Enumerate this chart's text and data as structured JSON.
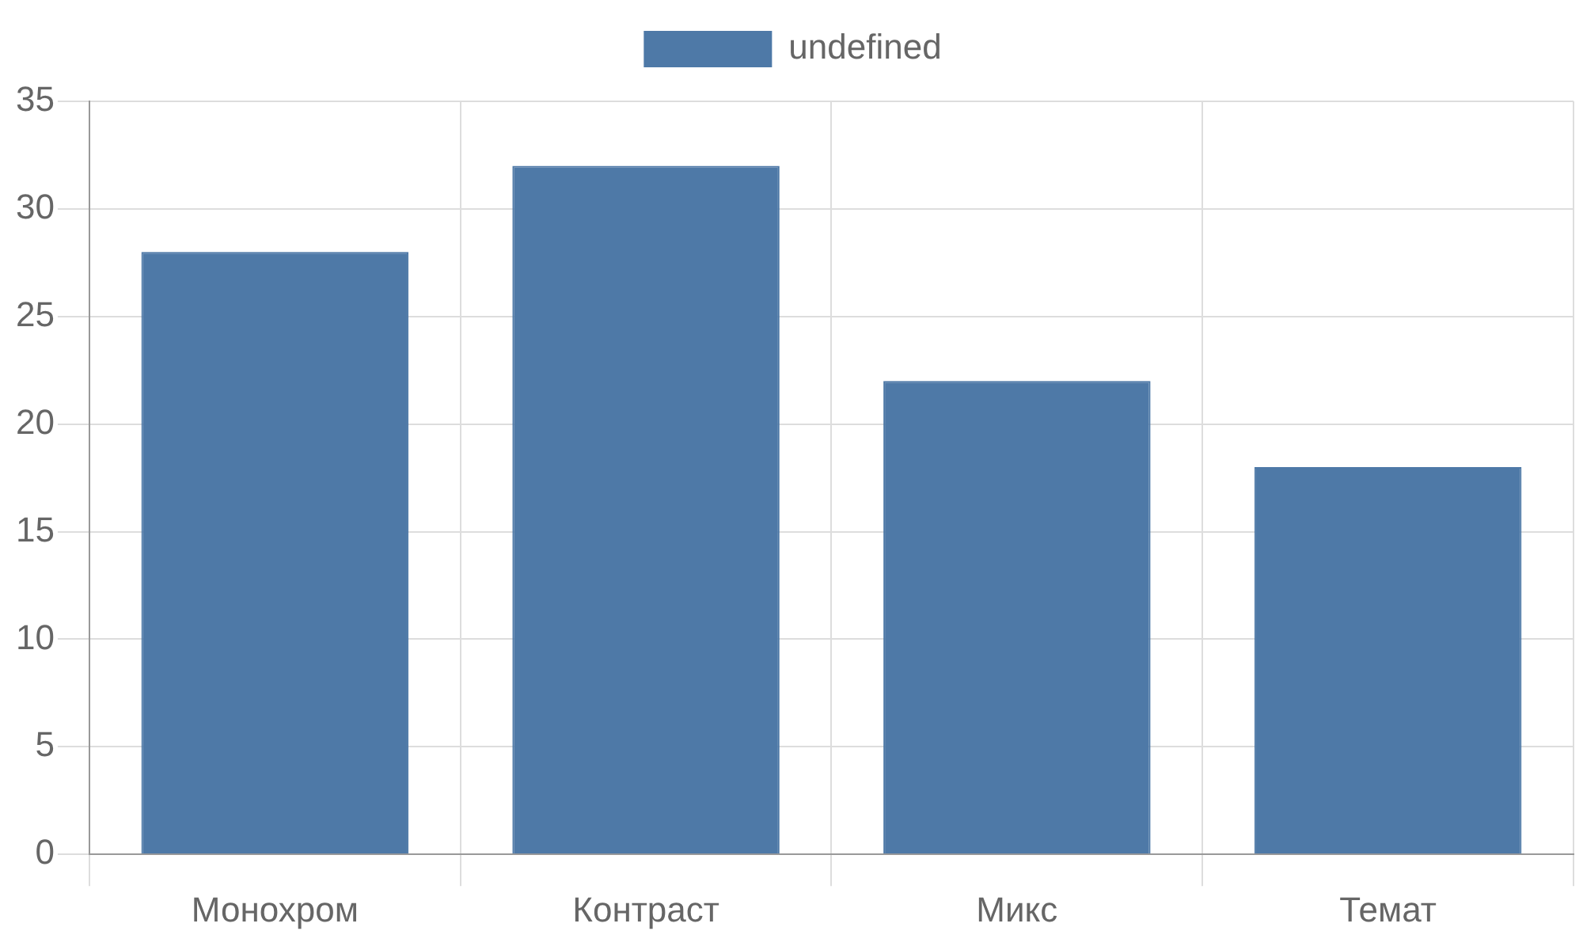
{
  "chart_data": {
    "type": "bar",
    "categories": [
      "Монохром",
      "Контраст",
      "Микс",
      "Темат"
    ],
    "series": [
      {
        "name": "undefined",
        "color": "#4e79a7",
        "values": [
          28,
          32,
          22,
          18
        ]
      }
    ],
    "ylim": [
      0,
      35
    ],
    "yticks": [
      0,
      5,
      10,
      15,
      20,
      25,
      30,
      35
    ],
    "grid": true,
    "legend": "top"
  }
}
